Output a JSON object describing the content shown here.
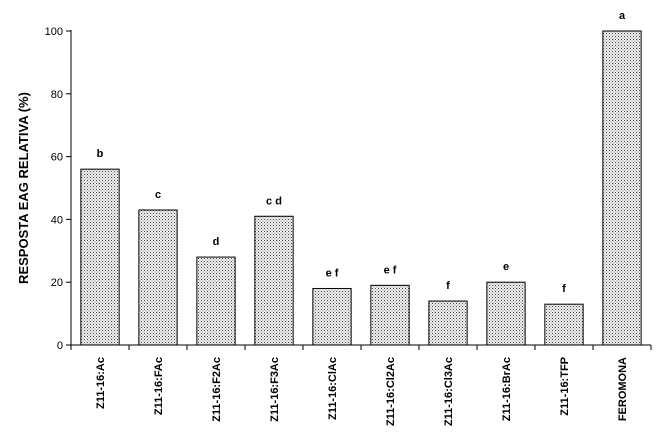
{
  "chart_data": {
    "type": "bar",
    "title": "",
    "xlabel": "",
    "ylabel": "RESPOSTA EAG RELATIVA (%)",
    "ylim": [
      0,
      100
    ],
    "yticks": [
      "0",
      "20",
      "40",
      "60",
      "80",
      "100"
    ],
    "grid": false,
    "categories": [
      "Z11-16:Ac",
      "Z11-16:FAc",
      "Z11-16:F2Ac",
      "Z11-16:F3Ac",
      "Z11-16:ClAc",
      "Z11-16:Cl2Ac",
      "Z11-16:Cl3Ac",
      "Z11-16:BrAc",
      "Z11-16:TFP",
      "FEROMONA"
    ],
    "values": [
      56,
      43,
      28,
      41,
      18,
      19,
      14,
      20,
      13,
      100
    ],
    "significance_letters": [
      "b",
      "c",
      "d",
      "c d",
      "e f",
      "e f",
      "f",
      "e",
      "f",
      "a"
    ],
    "bar_fill": "#e8e8e8",
    "bar_dot_color": "#555555"
  }
}
